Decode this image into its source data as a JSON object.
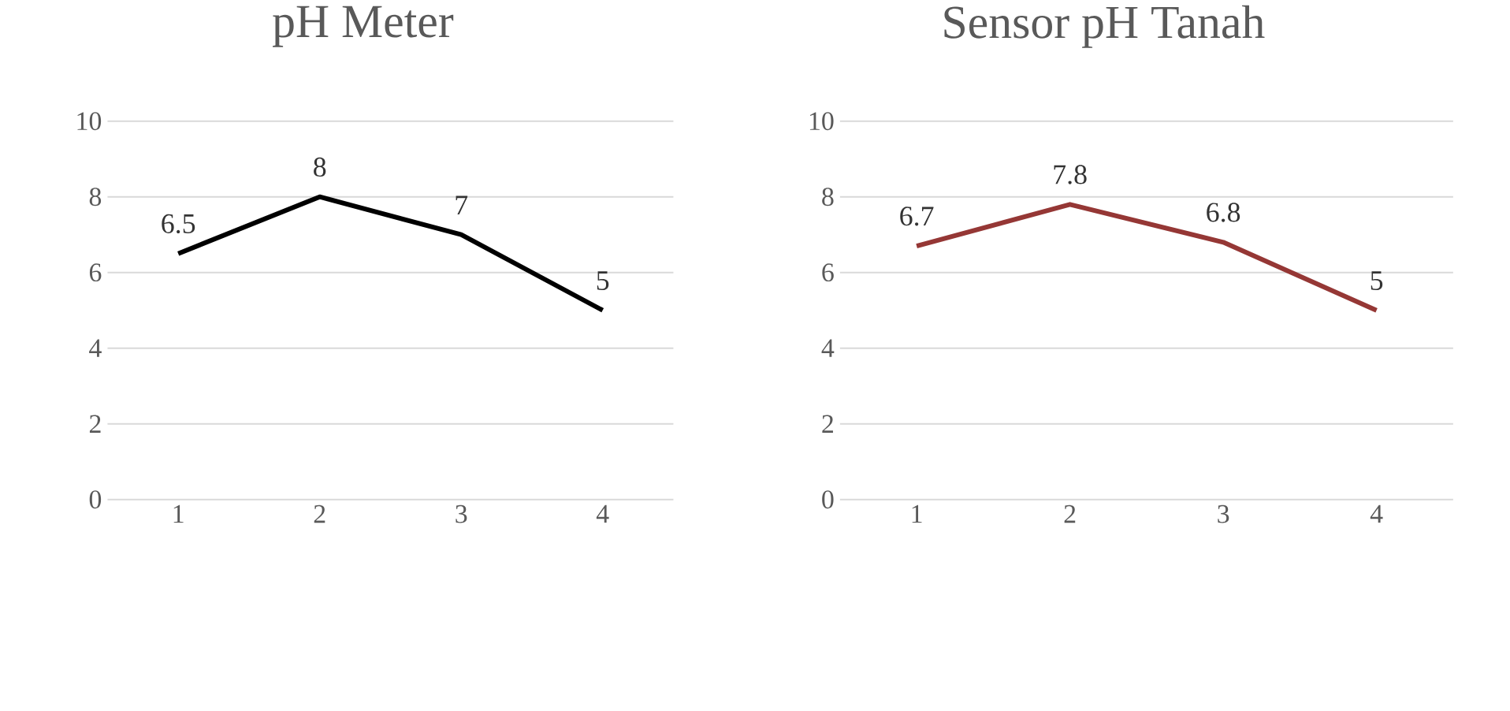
{
  "chart_data": [
    {
      "type": "line",
      "title": "pH Meter",
      "categories": [
        "1",
        "2",
        "3",
        "4"
      ],
      "series": [
        {
          "color": "#000000",
          "values": [
            6.5,
            8,
            7,
            5
          ]
        }
      ],
      "ylim": [
        0,
        10
      ],
      "yticks": [
        0,
        2,
        4,
        6,
        8,
        10
      ],
      "grid": "y",
      "data_labels": true,
      "marker": "none",
      "line_style": "solid"
    },
    {
      "type": "line",
      "title": "Sensor pH Tanah",
      "categories": [
        "1",
        "2",
        "3",
        "4"
      ],
      "series": [
        {
          "color": "#953735",
          "values": [
            6.7,
            7.8,
            6.8,
            5
          ]
        }
      ],
      "ylim": [
        0,
        10
      ],
      "yticks": [
        0,
        2,
        4,
        6,
        8,
        10
      ],
      "grid": "y",
      "data_labels": true,
      "marker": "none",
      "line_style": "solid"
    }
  ]
}
